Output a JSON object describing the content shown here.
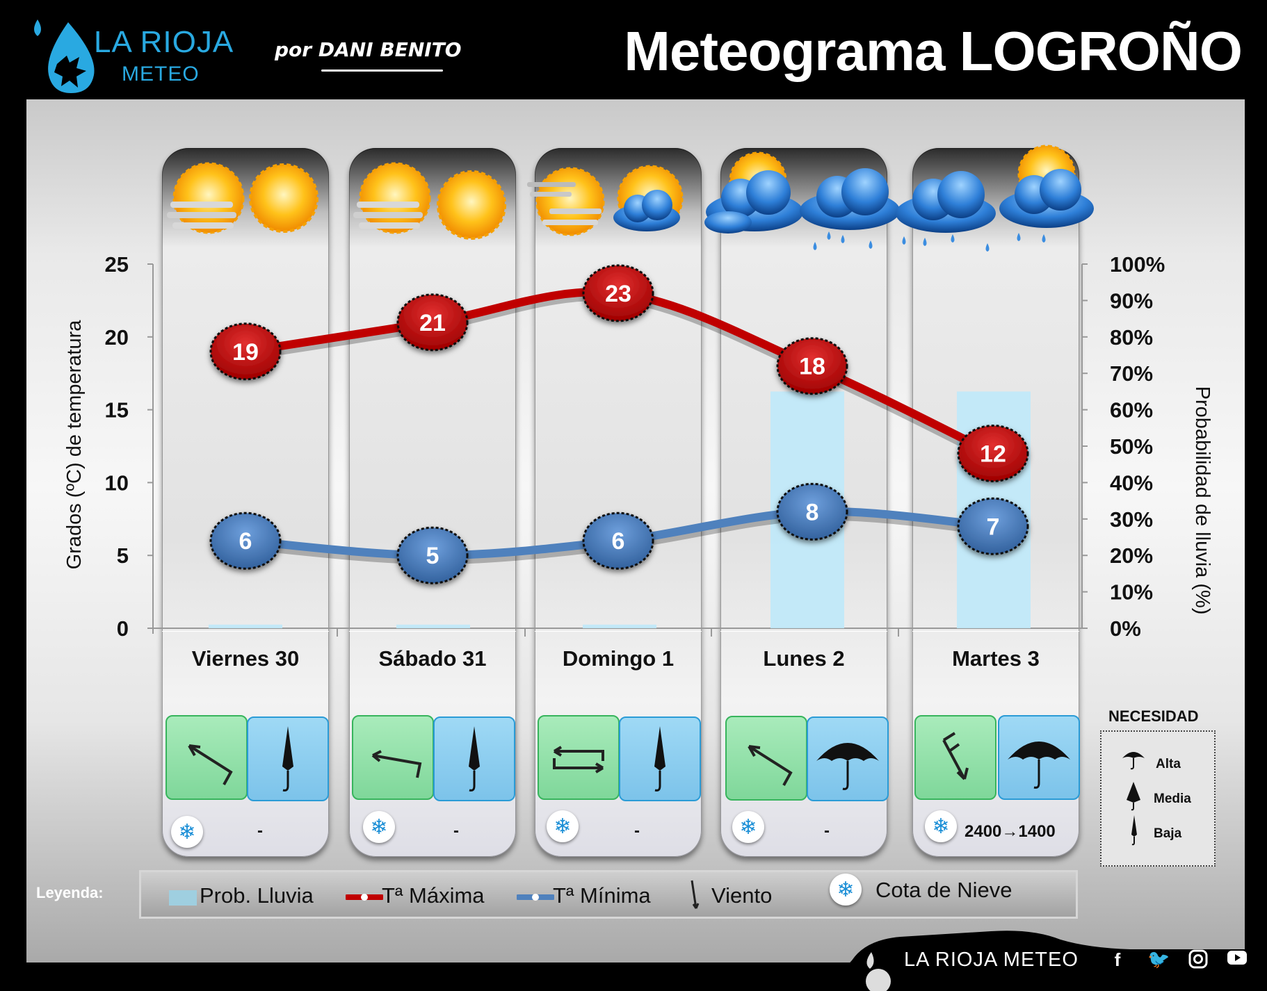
{
  "header": {
    "logo_line1": "LA RIOJA",
    "logo_line2": "METEO",
    "byline": "por DANI BENITO",
    "title": "Meteograma LOGROÑO"
  },
  "chart_data": {
    "type": "line",
    "categories": [
      "Viernes 30",
      "Sábado 31",
      "Domingo 1",
      "Lunes 2",
      "Martes 3"
    ],
    "series": [
      {
        "name": "Tª Máxima",
        "values": [
          19,
          21,
          23,
          18,
          12
        ],
        "color": "#c00000"
      },
      {
        "name": "Tª Mínima",
        "values": [
          6,
          5,
          6,
          8,
          7
        ],
        "color": "#4f81bd"
      },
      {
        "name": "Prob. Lluvia",
        "values": [
          1,
          1,
          1,
          65,
          65
        ],
        "color": "#bfe9fa",
        "axis": "right",
        "type": "bar"
      }
    ],
    "ylabel": "Grados (ºC) de temperatura",
    "y2label": "Probabilidad de lluvia (%)",
    "ylim": [
      0,
      25
    ],
    "y2lim": [
      0,
      100
    ],
    "yticks": [
      "0",
      "5",
      "10",
      "15",
      "20",
      "25"
    ],
    "y2ticks": [
      "0%",
      "10%",
      "20%",
      "30%",
      "40%",
      "50%",
      "60%",
      "70%",
      "80%",
      "90%",
      "100%"
    ],
    "grid": false
  },
  "days": [
    {
      "sky_morning": "sun-fog-icon",
      "sky_afternoon": "sun-icon",
      "wind": "northwest",
      "umbrella": "Baja",
      "snow_level": "-"
    },
    {
      "sky_morning": "sun-fog-icon",
      "sky_afternoon": "sun-icon",
      "wind": "west",
      "umbrella": "Baja",
      "snow_level": "-"
    },
    {
      "sky_morning": "sun-haze-icon",
      "sky_afternoon": "sun-cloud-icon",
      "wind": "variable",
      "umbrella": "Baja",
      "snow_level": "-"
    },
    {
      "sky_morning": "clouds-sun-icon",
      "sky_afternoon": "rain-cloud-icon",
      "wind": "northwest",
      "umbrella": "Alta",
      "snow_level": "-"
    },
    {
      "sky_morning": "rain-cloud-icon",
      "sky_afternoon": "sun-rain-cloud-icon",
      "wind": "north",
      "umbrella": "Alta",
      "snow_level": "2400→1400"
    }
  ],
  "legend": {
    "label": "Leyenda:",
    "rain": "Prob. Lluvia",
    "tmax": "Tª Máxima",
    "tmin": "Tª Mínima",
    "wind": "Viento",
    "snow": "Cota de Nieve"
  },
  "necesidad": {
    "title": "NECESIDAD",
    "alta": "Alta",
    "media": "Media",
    "baja": "Baja"
  },
  "footer": {
    "brand": "LA RIOJA METEO"
  }
}
